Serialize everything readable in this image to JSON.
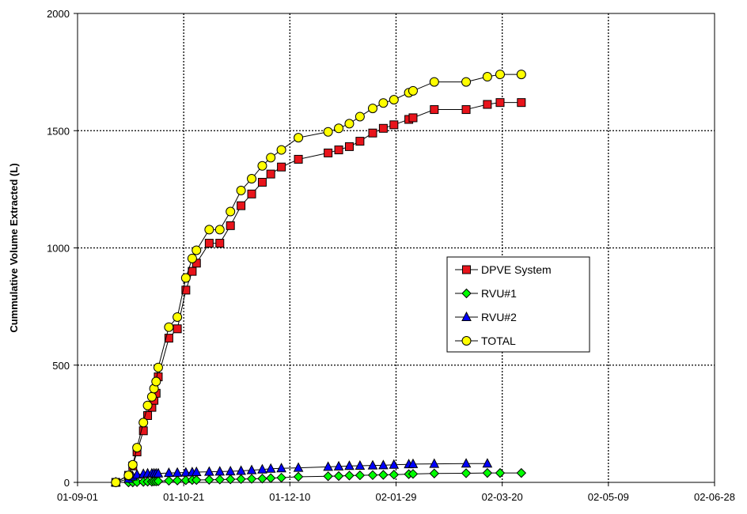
{
  "chart_data": {
    "type": "line",
    "title": "",
    "xlabel": "",
    "ylabel": "Cummulative Volume Extracted (L)",
    "x_tick_labels": [
      "01-09-01",
      "01-10-21",
      "01-12-10",
      "02-01-29",
      "02-03-20",
      "02-05-09",
      "02-06-28"
    ],
    "x_tick_dates": [
      "2001-09-01",
      "2001-10-21",
      "2001-12-10",
      "2002-01-29",
      "2002-03-20",
      "2002-05-09",
      "2002-06-28"
    ],
    "xlim": [
      "2001-09-01",
      "2002-06-28"
    ],
    "ylim": [
      0,
      2000
    ],
    "y_ticks": [
      0,
      500,
      1000,
      1500,
      2000
    ],
    "grid": true,
    "legend_position": "center-right",
    "series": [
      {
        "name": "DPVE System",
        "marker": "square",
        "color": "#e8141b",
        "points": [
          [
            "2001-09-19",
            0
          ],
          [
            "2001-09-25",
            30
          ],
          [
            "2001-09-27",
            70
          ],
          [
            "2001-09-29",
            130
          ],
          [
            "2001-10-02",
            220
          ],
          [
            "2001-10-04",
            285
          ],
          [
            "2001-10-06",
            320
          ],
          [
            "2001-10-07",
            350
          ],
          [
            "2001-10-08",
            380
          ],
          [
            "2001-10-09",
            450
          ],
          [
            "2001-10-14",
            615
          ],
          [
            "2001-10-18",
            655
          ],
          [
            "2001-10-22",
            820
          ],
          [
            "2001-10-25",
            900
          ],
          [
            "2001-10-27",
            935
          ],
          [
            "2001-11-02",
            1020
          ],
          [
            "2001-11-07",
            1020
          ],
          [
            "2001-11-12",
            1095
          ],
          [
            "2001-11-17",
            1180
          ],
          [
            "2001-11-22",
            1230
          ],
          [
            "2001-11-27",
            1280
          ],
          [
            "2001-12-01",
            1315
          ],
          [
            "2001-12-06",
            1345
          ],
          [
            "2001-12-14",
            1378
          ],
          [
            "2001-12-28",
            1405
          ],
          [
            "2002-01-02",
            1418
          ],
          [
            "2002-01-07",
            1432
          ],
          [
            "2002-01-12",
            1455
          ],
          [
            "2002-01-18",
            1490
          ],
          [
            "2002-01-23",
            1510
          ],
          [
            "2002-01-28",
            1525
          ],
          [
            "2002-02-04",
            1548
          ],
          [
            "2002-02-06",
            1555
          ],
          [
            "2002-02-16",
            1590
          ],
          [
            "2002-03-03",
            1590
          ],
          [
            "2002-03-13",
            1612
          ],
          [
            "2002-03-19",
            1620
          ],
          [
            "2002-03-29",
            1620
          ]
        ]
      },
      {
        "name": "RVU#1",
        "marker": "diamond",
        "color": "#00ff00",
        "points": [
          [
            "2001-09-19",
            0
          ],
          [
            "2001-09-25",
            0
          ],
          [
            "2001-09-27",
            0
          ],
          [
            "2001-09-29",
            1
          ],
          [
            "2001-10-02",
            2
          ],
          [
            "2001-10-04",
            3
          ],
          [
            "2001-10-06",
            3
          ],
          [
            "2001-10-07",
            4
          ],
          [
            "2001-10-08",
            4
          ],
          [
            "2001-10-09",
            5
          ],
          [
            "2001-10-14",
            7
          ],
          [
            "2001-10-18",
            8
          ],
          [
            "2001-10-22",
            9
          ],
          [
            "2001-10-25",
            10
          ],
          [
            "2001-10-27",
            10
          ],
          [
            "2001-11-02",
            11
          ],
          [
            "2001-11-07",
            12
          ],
          [
            "2001-11-12",
            13
          ],
          [
            "2001-11-17",
            14
          ],
          [
            "2001-11-22",
            15
          ],
          [
            "2001-11-27",
            16
          ],
          [
            "2001-12-01",
            18
          ],
          [
            "2001-12-06",
            20
          ],
          [
            "2001-12-14",
            24
          ],
          [
            "2001-12-28",
            26
          ],
          [
            "2002-01-02",
            27
          ],
          [
            "2002-01-07",
            29
          ],
          [
            "2002-01-12",
            30
          ],
          [
            "2002-01-18",
            31
          ],
          [
            "2002-01-23",
            32
          ],
          [
            "2002-01-28",
            33
          ],
          [
            "2002-02-04",
            35
          ],
          [
            "2002-02-06",
            36
          ],
          [
            "2002-02-16",
            38
          ],
          [
            "2002-03-03",
            39
          ],
          [
            "2002-03-13",
            40
          ],
          [
            "2002-03-19",
            40
          ],
          [
            "2002-03-29",
            40
          ]
        ]
      },
      {
        "name": "RVU#2",
        "marker": "triangle",
        "color": "#0000ff",
        "points": [
          [
            "2001-09-19",
            0
          ],
          [
            "2001-09-25",
            15
          ],
          [
            "2001-09-27",
            25
          ],
          [
            "2001-09-29",
            33
          ],
          [
            "2001-10-02",
            36
          ],
          [
            "2001-10-04",
            38
          ],
          [
            "2001-10-06",
            38
          ],
          [
            "2001-10-07",
            38
          ],
          [
            "2001-10-08",
            38
          ],
          [
            "2001-10-09",
            38
          ],
          [
            "2001-10-14",
            40
          ],
          [
            "2001-10-18",
            41
          ],
          [
            "2001-10-22",
            42
          ],
          [
            "2001-10-25",
            43
          ],
          [
            "2001-10-27",
            44
          ],
          [
            "2001-11-02",
            45
          ],
          [
            "2001-11-07",
            46
          ],
          [
            "2001-11-12",
            47
          ],
          [
            "2001-11-17",
            49
          ],
          [
            "2001-11-22",
            52
          ],
          [
            "2001-11-27",
            55
          ],
          [
            "2001-12-01",
            58
          ],
          [
            "2001-12-06",
            60
          ],
          [
            "2001-12-14",
            62
          ],
          [
            "2001-12-28",
            66
          ],
          [
            "2002-01-02",
            68
          ],
          [
            "2002-01-07",
            70
          ],
          [
            "2002-01-12",
            71
          ],
          [
            "2002-01-18",
            72
          ],
          [
            "2002-01-23",
            73
          ],
          [
            "2002-01-28",
            75
          ],
          [
            "2002-02-04",
            77
          ],
          [
            "2002-02-06",
            78
          ],
          [
            "2002-02-16",
            79
          ],
          [
            "2002-03-03",
            80
          ],
          [
            "2002-03-13",
            80
          ]
        ]
      },
      {
        "name": "TOTAL",
        "marker": "circle",
        "color": "#ffff00",
        "points": [
          [
            "2001-09-19",
            0
          ],
          [
            "2001-09-25",
            30
          ],
          [
            "2001-09-27",
            75
          ],
          [
            "2001-09-29",
            148
          ],
          [
            "2001-10-02",
            255
          ],
          [
            "2001-10-04",
            328
          ],
          [
            "2001-10-06",
            365
          ],
          [
            "2001-10-07",
            400
          ],
          [
            "2001-10-08",
            430
          ],
          [
            "2001-10-09",
            490
          ],
          [
            "2001-10-14",
            662
          ],
          [
            "2001-10-18",
            705
          ],
          [
            "2001-10-22",
            872
          ],
          [
            "2001-10-25",
            955
          ],
          [
            "2001-10-27",
            990
          ],
          [
            "2001-11-02",
            1078
          ],
          [
            "2001-11-07",
            1078
          ],
          [
            "2001-11-12",
            1155
          ],
          [
            "2001-11-17",
            1245
          ],
          [
            "2001-11-22",
            1295
          ],
          [
            "2001-11-27",
            1350
          ],
          [
            "2001-12-01",
            1385
          ],
          [
            "2001-12-06",
            1418
          ],
          [
            "2001-12-14",
            1470
          ],
          [
            "2001-12-28",
            1495
          ],
          [
            "2002-01-02",
            1510
          ],
          [
            "2002-01-07",
            1530
          ],
          [
            "2002-01-12",
            1560
          ],
          [
            "2002-01-18",
            1595
          ],
          [
            "2002-01-23",
            1618
          ],
          [
            "2002-01-28",
            1632
          ],
          [
            "2002-02-04",
            1662
          ],
          [
            "2002-02-06",
            1670
          ],
          [
            "2002-02-16",
            1708
          ],
          [
            "2002-03-03",
            1708
          ],
          [
            "2002-03-13",
            1730
          ],
          [
            "2002-03-19",
            1740
          ],
          [
            "2002-03-29",
            1740
          ]
        ]
      }
    ]
  }
}
